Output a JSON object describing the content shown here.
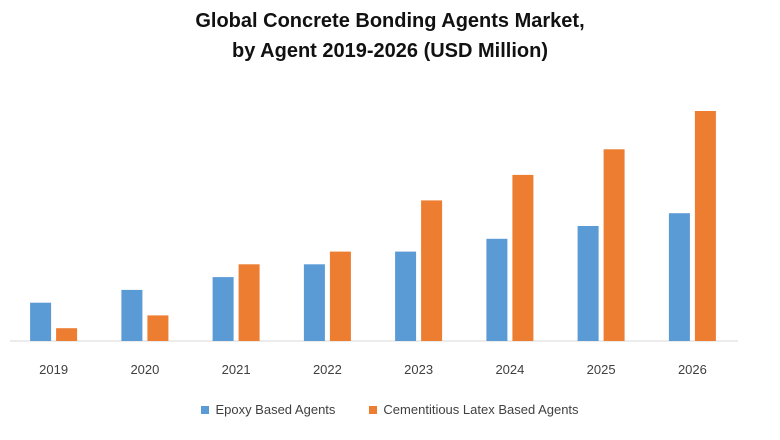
{
  "chart_data": {
    "type": "bar",
    "title_lines": [
      "Global Concrete Bonding Agents Market,",
      "by Agent 2019-2026 (USD Million)"
    ],
    "xlabel": "",
    "ylabel": "",
    "categories": [
      "2019",
      "2020",
      "2021",
      "2022",
      "2023",
      "2024",
      "2025",
      "2026"
    ],
    "series": [
      {
        "name": "Epoxy Based Agents",
        "color": "#5b9bd5",
        "values": [
          3.0,
          4.0,
          5.0,
          6.0,
          7.0,
          8.0,
          9.0,
          10.0
        ]
      },
      {
        "name": "Cementitious Latex Based Agents",
        "color": "#ed7d31",
        "values": [
          1.0,
          2.0,
          6.0,
          7.0,
          11.0,
          13.0,
          15.0,
          18.0
        ]
      }
    ],
    "ylim": [
      0,
      18
    ],
    "grid": false,
    "legend_position": "bottom"
  }
}
